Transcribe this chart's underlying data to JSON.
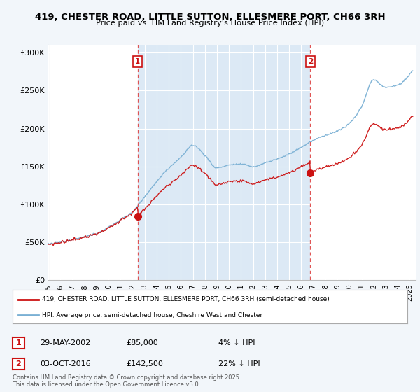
{
  "title": "419, CHESTER ROAD, LITTLE SUTTON, ELLESMERE PORT, CH66 3RH",
  "subtitle": "Price paid vs. HM Land Registry's House Price Index (HPI)",
  "background_color": "#f2f6fa",
  "plot_background": "#dce9f5",
  "shaded_region_color": "#dce9f5",
  "ylabel": "",
  "yticks": [
    0,
    50000,
    100000,
    150000,
    200000,
    250000,
    300000
  ],
  "ytick_labels": [
    "£0",
    "£50K",
    "£100K",
    "£150K",
    "£200K",
    "£250K",
    "£300K"
  ],
  "xmin": 1995.0,
  "xmax": 2025.5,
  "ymin": 0,
  "ymax": 310000,
  "hpi_color": "#7ab0d4",
  "price_color": "#cc1111",
  "marker1_x": 2002.41,
  "marker1_y": 85000,
  "marker2_x": 2016.75,
  "marker2_y": 142500,
  "legend_line1": "419, CHESTER ROAD, LITTLE SUTTON, ELLESMERE PORT, CH66 3RH (semi-detached house)",
  "legend_line2": "HPI: Average price, semi-detached house, Cheshire West and Chester",
  "table_row1_date": "29-MAY-2002",
  "table_row1_price": "£85,000",
  "table_row1_hpi": "4% ↓ HPI",
  "table_row2_date": "03-OCT-2016",
  "table_row2_price": "£142,500",
  "table_row2_hpi": "22% ↓ HPI",
  "footnote": "Contains HM Land Registry data © Crown copyright and database right 2025.\nThis data is licensed under the Open Government Licence v3.0.",
  "grid_color": "#ffffff",
  "dashed_line_color": "#dd4444"
}
